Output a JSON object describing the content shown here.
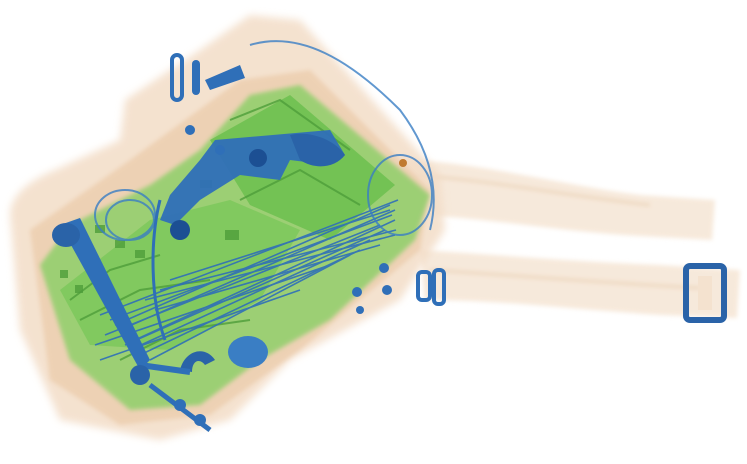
{
  "image": {
    "kind": "x-ray baggage scan",
    "objects": [
      "bag-body",
      "shoulder-strap",
      "strap-buckle",
      "revolver",
      "wrench",
      "cables",
      "metal-clips",
      "circuit-board"
    ]
  },
  "colors": {
    "background": "#ffffff",
    "organic": "#f2dcc6",
    "organic_dark": "#e6c4a4",
    "mixed": "#7cc45a",
    "mixed_dark": "#4e9e3a",
    "metal": "#2f6fb8",
    "metal_dark": "#1c4f93"
  }
}
